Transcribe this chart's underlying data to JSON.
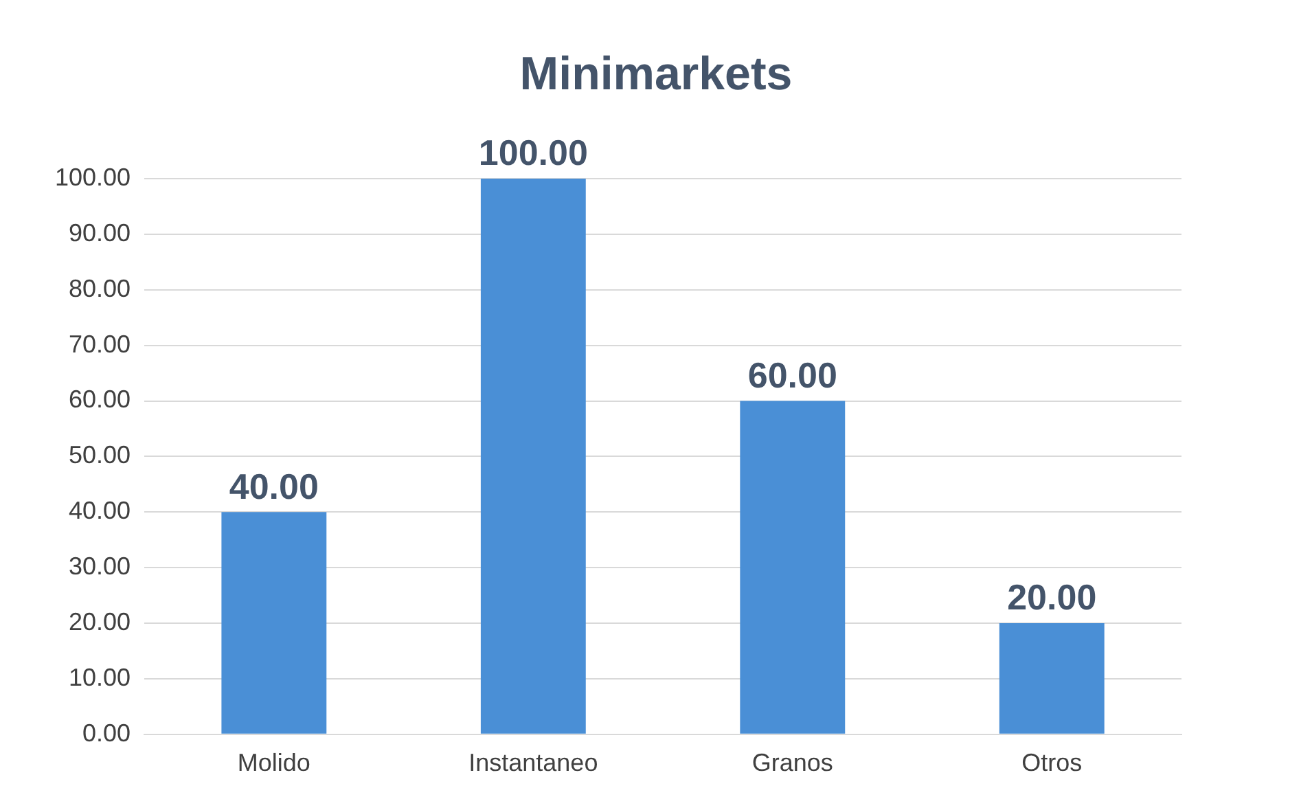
{
  "chart_data": {
    "type": "bar",
    "title": "Minimarkets",
    "categories": [
      "Molido",
      "Instantaneo",
      "Granos",
      "Otros"
    ],
    "values": [
      40,
      100,
      60,
      20
    ],
    "color": "#4a8fd6",
    "value_labels": [
      "40.00",
      "100.00",
      "60.00",
      "20.00"
    ],
    "ylim": [
      0,
      100
    ],
    "yticks": [
      {
        "value": 0,
        "label": "0.00"
      },
      {
        "value": 10,
        "label": "10.00"
      },
      {
        "value": 20,
        "label": "20.00"
      },
      {
        "value": 30,
        "label": "30.00"
      },
      {
        "value": 40,
        "label": "40.00"
      },
      {
        "value": 50,
        "label": "50.00"
      },
      {
        "value": 60,
        "label": "60.00"
      },
      {
        "value": 70,
        "label": "70.00"
      },
      {
        "value": 80,
        "label": "80.00"
      },
      {
        "value": 90,
        "label": "90.00"
      },
      {
        "value": 100,
        "label": "100.00"
      }
    ],
    "grid": "y"
  }
}
